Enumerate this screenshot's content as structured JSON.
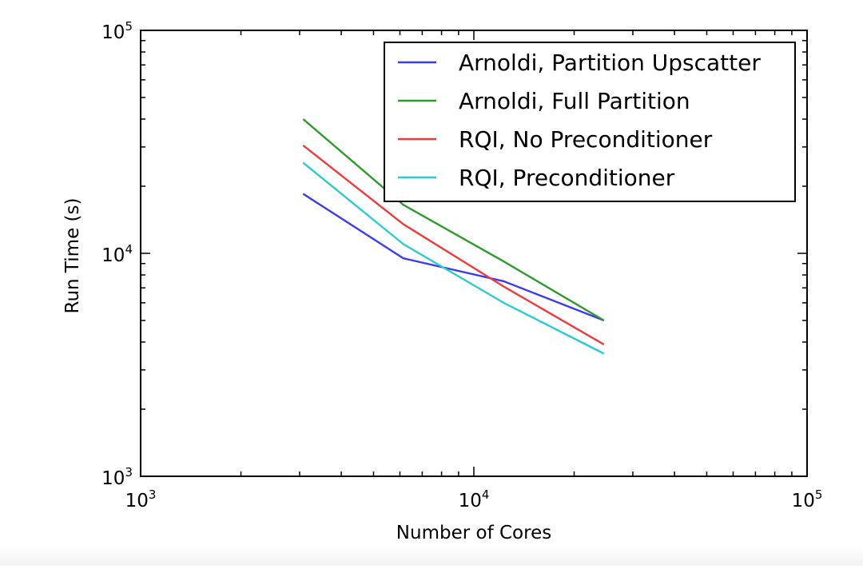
{
  "chart_data": {
    "type": "line",
    "xlabel": "Number of Cores",
    "ylabel": "Run Time (s)",
    "xscale": "log",
    "yscale": "log",
    "xlim": [
      1000,
      100000
    ],
    "ylim": [
      1000,
      100000
    ],
    "xticks": [
      {
        "value": 1000,
        "base": "10",
        "exp": "3"
      },
      {
        "value": 10000,
        "base": "10",
        "exp": "4"
      },
      {
        "value": 100000,
        "base": "10",
        "exp": "5"
      }
    ],
    "yticks": [
      {
        "value": 1000,
        "base": "10",
        "exp": "3"
      },
      {
        "value": 10000,
        "base": "10",
        "exp": "4"
      },
      {
        "value": 100000,
        "base": "10",
        "exp": "5"
      }
    ],
    "grid": false,
    "legend_position": "top-right",
    "x": [
      3072,
      6144,
      12288,
      24576
    ],
    "series": [
      {
        "name": "Arnoldi, Partition Upscatter",
        "color": "#3b3bf0",
        "values": [
          18500,
          9500,
          7500,
          5000
        ]
      },
      {
        "name": "Arnoldi, Full Partition",
        "color": "#2e9a2e",
        "values": [
          40000,
          16500,
          9200,
          5000
        ]
      },
      {
        "name": "RQI, No Preconditioner",
        "color": "#f03a3a",
        "values": [
          30500,
          13500,
          7100,
          3900
        ]
      },
      {
        "name": "RQI, Preconditioner",
        "color": "#2ccbd0",
        "values": [
          25500,
          11000,
          6000,
          3550
        ]
      }
    ]
  }
}
